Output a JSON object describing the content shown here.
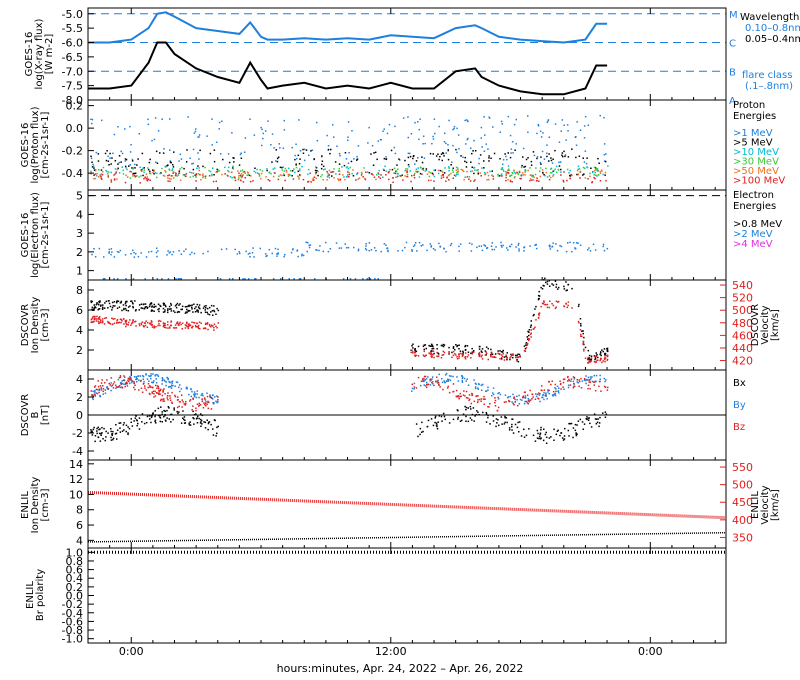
{
  "figure": {
    "x_axis_title": "hours:minutes, Apr. 24, 2022 – Apr. 26, 2022",
    "x_ticks": [
      "0:00",
      "12:00",
      "0:00"
    ]
  },
  "colors": {
    "xray_long": "#1e7fdc",
    "xray_short": "#000000",
    "red": "#e02020",
    "blue": "#1e7fdc",
    "cyan": "#00bcd4",
    "green": "#39c739",
    "yellow": "#e8c800",
    "orange": "#f07020",
    "magenta": "#e030e0"
  },
  "chart_data": [
    {
      "type": "line",
      "panel": "xray",
      "ylabel": "GOES-16\nlog(X-ray flux)\n[W m-2]",
      "yticks": [
        "-5.0",
        "-5.5",
        "-6.0",
        "-6.5",
        "-7.0",
        "-7.5",
        "-8.0"
      ],
      "ylim": [
        -8.0,
        -4.8
      ],
      "xlim_hours": [
        -2,
        27.5
      ],
      "flare_levels": [
        {
          "label": "M",
          "y": -5.0
        },
        {
          "label": "C",
          "y": -6.0
        },
        {
          "label": "B",
          "y": -7.0
        },
        {
          "label": "A",
          "y": -8.0
        }
      ],
      "legend_title": "Wavelength",
      "series": [
        {
          "name": "0.10–0.8nm",
          "x": [
            -2,
            -1,
            0,
            0.8,
            1.2,
            1.6,
            2,
            3,
            4,
            5,
            5.5,
            6,
            6.3,
            7,
            8,
            9,
            10,
            11,
            12,
            13,
            14,
            15,
            15.9,
            16.2,
            17,
            18,
            19,
            20,
            21,
            21.5,
            22
          ],
          "y": [
            -6.0,
            -6.0,
            -5.9,
            -5.5,
            -5.0,
            -4.95,
            -5.1,
            -5.5,
            -5.6,
            -5.7,
            -5.3,
            -5.8,
            -5.9,
            -5.9,
            -5.85,
            -5.9,
            -5.85,
            -5.9,
            -5.75,
            -5.8,
            -5.85,
            -5.5,
            -5.4,
            -5.5,
            -5.8,
            -5.9,
            -5.95,
            -6.0,
            -5.9,
            -5.35,
            -5.35
          ]
        },
        {
          "name": "0.05–0.4nm",
          "x": [
            -2,
            -1,
            0,
            0.8,
            1.2,
            1.6,
            2,
            3,
            4,
            5,
            5.5,
            6,
            6.3,
            7,
            8,
            9,
            10,
            11,
            12,
            13,
            14,
            15,
            15.9,
            16.2,
            17,
            18,
            19,
            20,
            21,
            21.5,
            22
          ],
          "y": [
            -7.6,
            -7.6,
            -7.5,
            -6.7,
            -6.0,
            -6.0,
            -6.4,
            -6.9,
            -7.2,
            -7.4,
            -6.7,
            -7.3,
            -7.6,
            -7.5,
            -7.4,
            -7.6,
            -7.5,
            -7.6,
            -7.4,
            -7.6,
            -7.6,
            -7.0,
            -6.9,
            -7.2,
            -7.5,
            -7.7,
            -7.8,
            -7.8,
            -7.6,
            -6.8,
            -6.8
          ]
        }
      ],
      "flare_class_label": "flare class",
      "flare_class_range": "(.1–.8nm)"
    },
    {
      "type": "scatter",
      "panel": "proton",
      "ylabel": "GOES-16\nlog(Proton flux)\n[cm-2s-1sr-1]",
      "yticks": [
        "0.2",
        "0.0",
        "-0.2",
        "-0.4"
      ],
      "ylim": [
        -0.55,
        0.25
      ],
      "legend_title": "Proton\nEnergies",
      "series": [
        {
          "name": ">1 MeV",
          "center": -0.1,
          "spread": 0.22
        },
        {
          "name": ">5 MeV",
          "center": -0.3,
          "spread": 0.12
        },
        {
          "name": ">10 MeV",
          "center": -0.38,
          "spread": 0.05
        },
        {
          "name": ">30 MeV",
          "center": -0.39,
          "spread": 0.05
        },
        {
          "name": ">50 MeV",
          "center": -0.41,
          "spread": 0.05
        },
        {
          "name": ">100 MeV",
          "center": -0.43,
          "spread": 0.05
        }
      ]
    },
    {
      "type": "scatter",
      "panel": "electron",
      "ylabel": "GOES-16\nlog(Electron flux)\n[cm-2s-1sr-1]",
      "yticks": [
        "5",
        "4",
        "3",
        "2",
        "1"
      ],
      "ylim": [
        0.5,
        5.3
      ],
      "dashed_level": 5.0,
      "legend_title": "Electron\nEnergies",
      "series": [
        {
          "name": ">0.8 MeV",
          "center": 5.0,
          "spread": 0
        },
        {
          "name": ">2 MeV",
          "center": 2.2,
          "spread": 0.25
        },
        {
          "name": ">4 MeV",
          "center": 0.6,
          "spread": 0
        }
      ]
    },
    {
      "type": "scatter",
      "panel": "dscovr_plasma",
      "ylabel": "DSCOVR\nIon Density\n[cm-3]",
      "y2label": "DSCOVR\nVelocity\n[km/s]",
      "yticks": [
        "8",
        "6",
        "4",
        "2"
      ],
      "ylim": [
        0,
        9
      ],
      "y2ticks": [
        "540",
        "520",
        "500",
        "480",
        "460",
        "440",
        "420"
      ],
      "y2lim": [
        405,
        548
      ],
      "segments_hours": [
        [
          -1.9,
          4.0
        ],
        [
          12.9,
          22.0
        ]
      ],
      "density": {
        "x": [
          -2,
          0,
          2,
          4,
          13,
          15,
          17,
          18,
          19,
          19.5,
          20.5,
          21,
          22
        ],
        "y": [
          6.5,
          6.5,
          6.3,
          6.0,
          2.2,
          2.1,
          1.8,
          1.2,
          8.8,
          8.5,
          8.4,
          1.5,
          1.8
        ]
      },
      "velocity": {
        "x": [
          -2,
          0,
          2,
          4,
          13,
          15,
          17,
          18,
          19,
          19.5,
          20.5,
          21,
          22
        ],
        "y": [
          488,
          480,
          478,
          475,
          432,
          430,
          428,
          425,
          512,
          510,
          508,
          422,
          424
        ]
      }
    },
    {
      "type": "scatter",
      "panel": "dscovr_mag",
      "ylabel": "DSCOVR\nB\n[nT]",
      "yticks": [
        "4",
        "2",
        "0",
        "-2",
        "-4"
      ],
      "ylim": [
        -5,
        5
      ],
      "segments_hours": [
        [
          -1.9,
          4.0
        ],
        [
          12.9,
          22.0
        ]
      ],
      "series": [
        {
          "name": "Bx",
          "center": -1.0,
          "spread": 1.8
        },
        {
          "name": "By",
          "center": 3.0,
          "spread": 1.0
        },
        {
          "name": "Bz",
          "center": 2.5,
          "spread": 1.5
        }
      ]
    },
    {
      "type": "line",
      "panel": "enlil_plasma",
      "ylabel": "ENLIL\nIon Density\n[cm-3]",
      "y2label": "ENLIL\nVelocity\n[km/s]",
      "yticks": [
        "14",
        "12",
        "10",
        "8",
        "6",
        "4"
      ],
      "ylim": [
        3,
        14.5
      ],
      "y2ticks": [
        "550",
        "500",
        "450",
        "400",
        "350"
      ],
      "y2lim": [
        320,
        570
      ],
      "density": {
        "x": [
          -2,
          27.5
        ],
        "y": [
          3.8,
          5.0
        ]
      },
      "velocity": {
        "x": [
          -2,
          27.5
        ],
        "y": [
          478,
          406
        ]
      }
    },
    {
      "type": "line",
      "panel": "enlil_polarity",
      "ylabel": "ENLIL\nBr polarity",
      "yticks": [
        "1.0",
        "0.8",
        "0.6",
        "0.4",
        "0.2",
        "0.0",
        "-0.2",
        "-0.4",
        "-0.6",
        "-0.8",
        "-1.0"
      ],
      "ylim": [
        -1.1,
        1.1
      ],
      "series": [
        {
          "x": [
            -2,
            27.5
          ],
          "y": [
            1.0,
            1.0
          ]
        }
      ]
    }
  ]
}
